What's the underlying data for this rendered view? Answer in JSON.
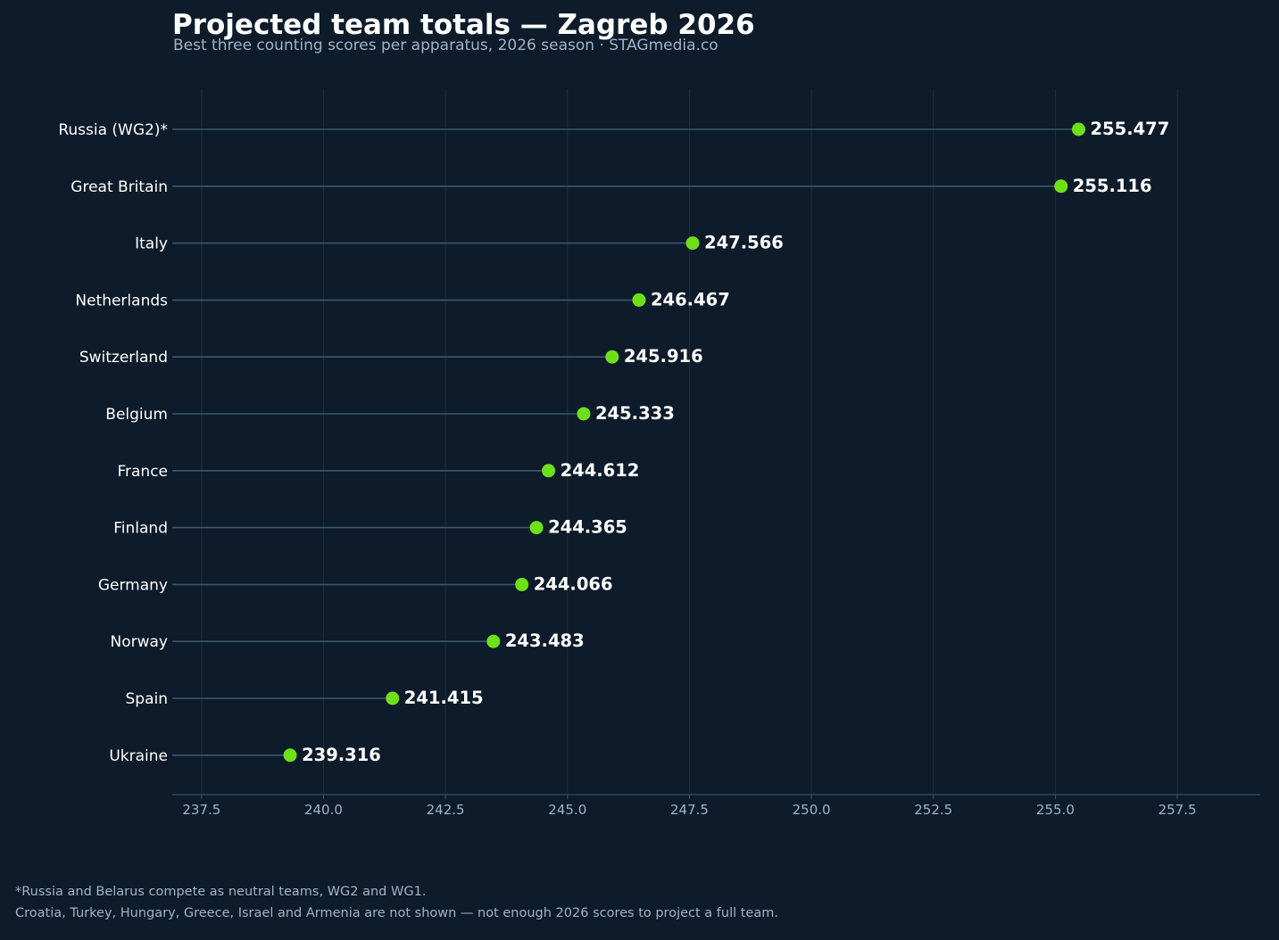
{
  "chart_data": {
    "type": "lollipop",
    "title": "Projected team totals — Zagreb 2026",
    "subtitle": "Best three counting scores per apparatus, 2026 season · STAGmedia.co",
    "categories": [
      "Russia (WG2)*",
      "Great Britain",
      "Italy",
      "Netherlands",
      "Switzerland",
      "Belgium",
      "France",
      "Finland",
      "Germany",
      "Norway",
      "Spain",
      "Ukraine"
    ],
    "values": [
      255.477,
      255.116,
      247.566,
      246.467,
      245.916,
      245.333,
      244.612,
      244.365,
      244.066,
      243.483,
      241.415,
      239.316
    ],
    "value_labels": [
      "255.477",
      "255.116",
      "247.566",
      "246.467",
      "245.916",
      "245.333",
      "244.612",
      "244.365",
      "244.066",
      "243.483",
      "241.415",
      "239.316"
    ],
    "xlim": [
      236.9,
      259.2
    ],
    "xticks": [
      237.5,
      240.0,
      242.5,
      245.0,
      247.5,
      250.0,
      252.5,
      255.0,
      257.5
    ],
    "xtick_labels": [
      "237.5",
      "240.0",
      "242.5",
      "245.0",
      "247.5",
      "250.0",
      "252.5",
      "255.0",
      "257.5"
    ],
    "grid": "vertical",
    "xlabel": "",
    "ylabel": ""
  },
  "footnotes": [
    "*Russia and Belarus compete as neutral teams, WG2 and WG1.",
    "Croatia, Turkey, Hungary, Greece, Israel and Armenia are not shown — not enough 2026 scores to project a full team."
  ],
  "colors": {
    "background": "#0d1b2a",
    "marker": "#6ee01a",
    "stem": "#3d5670",
    "grid": "#1e2e40",
    "axis": "#3d5670",
    "text": "#ffffff",
    "muted": "#9fb3c8"
  }
}
